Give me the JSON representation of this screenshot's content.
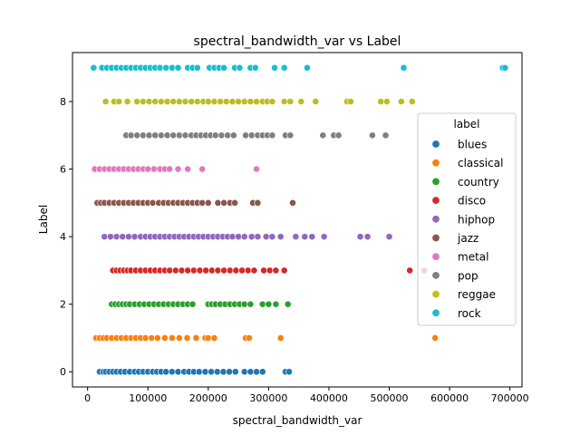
{
  "chart_data": {
    "type": "scatter",
    "title": "spectral_bandwidth_var vs Label",
    "xlabel": "spectral_bandwidth_var",
    "ylabel": "Label",
    "xlim": [
      -25000,
      720000
    ],
    "ylim": [
      -0.45,
      9.45
    ],
    "x_ticks": [
      0,
      100000,
      200000,
      300000,
      400000,
      500000,
      600000,
      700000
    ],
    "x_tick_labels": [
      "0",
      "100000",
      "200000",
      "300000",
      "400000",
      "500000",
      "600000",
      "700000"
    ],
    "y_ticks": [
      0,
      2,
      4,
      6,
      8
    ],
    "y_tick_labels": [
      "0",
      "2",
      "4",
      "6",
      "8"
    ],
    "grid": false,
    "legend": {
      "title": "label",
      "placement": "right",
      "entries": [
        {
          "name": "blues",
          "color": "#1f77b4"
        },
        {
          "name": "classical",
          "color": "#ff7f0e"
        },
        {
          "name": "country",
          "color": "#2ca02c"
        },
        {
          "name": "disco",
          "color": "#d62728"
        },
        {
          "name": "hiphop",
          "color": "#9467bd"
        },
        {
          "name": "jazz",
          "color": "#8c564b"
        },
        {
          "name": "metal",
          "color": "#e377c2"
        },
        {
          "name": "pop",
          "color": "#7f7f7f"
        },
        {
          "name": "reggae",
          "color": "#bcbd22"
        },
        {
          "name": "rock",
          "color": "#17becf"
        }
      ]
    },
    "series": [
      {
        "name": "blues",
        "y": 0,
        "x": [
          20000,
          26000,
          30000,
          36000,
          42000,
          48000,
          55000,
          62000,
          70000,
          78000,
          85000,
          92000,
          100000,
          108000,
          115000,
          122000,
          130000,
          140000,
          150000,
          160000,
          168000,
          176000,
          185000,
          195000,
          205000,
          215000,
          225000,
          235000,
          245000,
          260000,
          270000,
          280000,
          290000,
          328000,
          334000
        ]
      },
      {
        "name": "classical",
        "y": 1,
        "x": [
          14000,
          20000,
          26000,
          32000,
          40000,
          48000,
          56000,
          64000,
          72000,
          80000,
          88000,
          96000,
          106000,
          116000,
          128000,
          140000,
          152000,
          165000,
          180000,
          195000,
          200000,
          210000,
          262000,
          268000,
          320000,
          576000
        ]
      },
      {
        "name": "country",
        "y": 2,
        "x": [
          40000,
          46000,
          52000,
          58000,
          64000,
          70000,
          78000,
          86000,
          94000,
          102000,
          110000,
          118000,
          126000,
          134000,
          142000,
          150000,
          158000,
          166000,
          174000,
          200000,
          206000,
          212000,
          220000,
          228000,
          236000,
          244000,
          252000,
          260000,
          270000,
          290000,
          300000,
          312000,
          332000
        ]
      },
      {
        "name": "disco",
        "y": 3,
        "x": [
          42000,
          48000,
          54000,
          60000,
          66000,
          72000,
          80000,
          88000,
          96000,
          104000,
          112000,
          120000,
          128000,
          136000,
          146000,
          156000,
          166000,
          176000,
          186000,
          196000,
          206000,
          216000,
          226000,
          236000,
          246000,
          256000,
          266000,
          276000,
          292000,
          302000,
          312000,
          326000,
          534000,
          558000
        ]
      },
      {
        "name": "hiphop",
        "y": 4,
        "x": [
          28000,
          38000,
          48000,
          58000,
          68000,
          78000,
          88000,
          96000,
          104000,
          112000,
          120000,
          128000,
          136000,
          144000,
          152000,
          160000,
          168000,
          176000,
          184000,
          192000,
          200000,
          208000,
          216000,
          224000,
          232000,
          240000,
          250000,
          260000,
          272000,
          282000,
          296000,
          306000,
          320000,
          345000,
          360000,
          372000,
          392000,
          452000,
          464000,
          500000
        ]
      },
      {
        "name": "jazz",
        "y": 5,
        "x": [
          16000,
          22000,
          28000,
          36000,
          44000,
          52000,
          60000,
          68000,
          76000,
          84000,
          92000,
          100000,
          108000,
          118000,
          126000,
          134000,
          142000,
          150000,
          158000,
          166000,
          174000,
          182000,
          190000,
          200000,
          216000,
          226000,
          236000,
          244000,
          274000,
          282000,
          340000
        ]
      },
      {
        "name": "metal",
        "y": 6,
        "x": [
          12000,
          20000,
          28000,
          36000,
          44000,
          52000,
          60000,
          68000,
          76000,
          84000,
          92000,
          100000,
          110000,
          120000,
          128000,
          136000,
          150000,
          166000,
          190000,
          280000
        ]
      },
      {
        "name": "pop",
        "y": 7,
        "x": [
          64000,
          72000,
          82000,
          92000,
          102000,
          112000,
          122000,
          132000,
          142000,
          152000,
          162000,
          172000,
          180000,
          188000,
          196000,
          204000,
          212000,
          222000,
          232000,
          242000,
          262000,
          272000,
          282000,
          290000,
          298000,
          306000,
          328000,
          336000,
          390000,
          408000,
          416000,
          472000,
          494000
        ]
      },
      {
        "name": "reggae",
        "y": 8,
        "x": [
          30000,
          44000,
          52000,
          66000,
          82000,
          92000,
          102000,
          112000,
          122000,
          132000,
          142000,
          152000,
          162000,
          172000,
          182000,
          192000,
          200000,
          210000,
          220000,
          230000,
          240000,
          250000,
          260000,
          270000,
          280000,
          290000,
          298000,
          306000,
          326000,
          336000,
          354000,
          378000,
          430000,
          436000,
          486000,
          496000,
          520000,
          538000
        ]
      },
      {
        "name": "rock",
        "y": 9,
        "x": [
          10000,
          24000,
          32000,
          40000,
          48000,
          56000,
          64000,
          72000,
          80000,
          88000,
          96000,
          104000,
          112000,
          120000,
          130000,
          140000,
          150000,
          166000,
          174000,
          182000,
          202000,
          210000,
          218000,
          226000,
          244000,
          252000,
          270000,
          278000,
          310000,
          326000,
          364000,
          524000,
          688000,
          692000
        ]
      }
    ]
  }
}
